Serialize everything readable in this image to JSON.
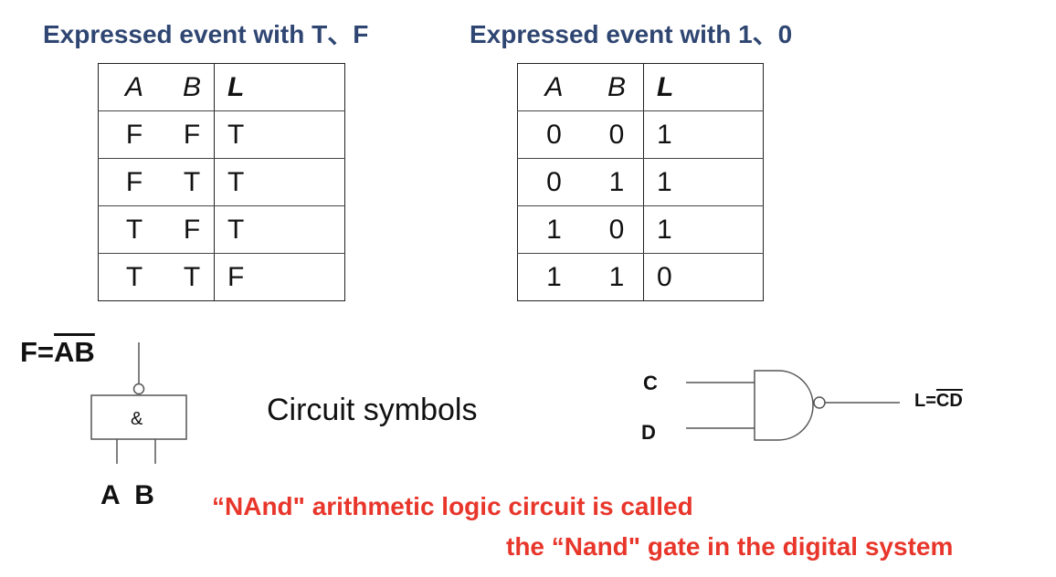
{
  "headings": {
    "left": "Expressed event with T、F",
    "right": "Expressed event with 1、0"
  },
  "table_tf": {
    "headers": [
      "A",
      "B",
      "L"
    ],
    "rows": [
      [
        "F",
        "F",
        "T"
      ],
      [
        "F",
        "T",
        "T"
      ],
      [
        "T",
        "F",
        "T"
      ],
      [
        "T",
        "T",
        "F"
      ]
    ]
  },
  "table_10": {
    "headers": [
      "A",
      "B",
      "L"
    ],
    "rows": [
      [
        "0",
        "0",
        "1"
      ],
      [
        "0",
        "1",
        "1"
      ],
      [
        "1",
        "0",
        "1"
      ],
      [
        "1",
        "1",
        "0"
      ]
    ]
  },
  "left_symbol": {
    "output_prefix": "F=",
    "output_overlined": "AB",
    "gate_label": "&",
    "inputs_label": "A  B"
  },
  "caption": "Circuit symbols",
  "right_symbol": {
    "input_c": "C",
    "input_d": "D",
    "output_prefix": "L=",
    "output_overlined": "CD"
  },
  "note": {
    "line1": "“NAnd\" arithmetic logic circuit is called",
    "line2": "the “Nand\" gate in the digital system"
  }
}
